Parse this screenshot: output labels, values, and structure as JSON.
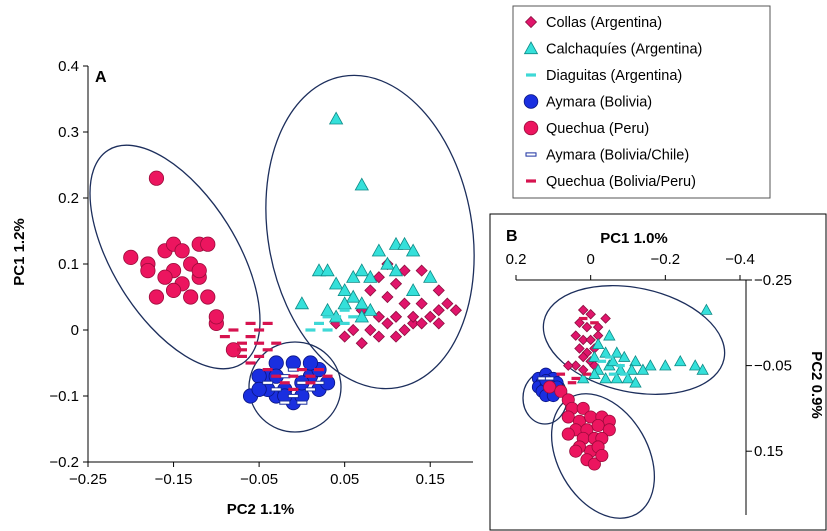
{
  "legend": {
    "items": [
      {
        "label": "Collas (Argentina)",
        "marker": "diamond",
        "color": "#e0156b",
        "stroke": "#8a0d3e"
      },
      {
        "label": "Calchaquíes (Argentina)",
        "marker": "triangle",
        "color": "#35e0da",
        "stroke": "#0e8a86"
      },
      {
        "label": "Diaguitas (Argentina)",
        "marker": "dash",
        "color": "#3ed8d6",
        "stroke": "#3ed8d6"
      },
      {
        "label": "Aymara (Bolivia)",
        "marker": "circle",
        "color": "#1a2fe0",
        "stroke": "#0a1580"
      },
      {
        "label": "Quechua (Peru)",
        "marker": "circle",
        "color": "#ec155f",
        "stroke": "#9a0b3b"
      },
      {
        "label": "Aymara (Bolivia/Chile)",
        "marker": "dash-outline",
        "color": "#ffffff",
        "stroke": "#1a2fa0"
      },
      {
        "label": "Quechua (Bolivia/Peru)",
        "marker": "dash",
        "color": "#d6134f",
        "stroke": "#d6134f"
      }
    ]
  },
  "chart_data": [
    {
      "type": "scatter",
      "panel_label": "A",
      "xlabel": "PC2 1.1%",
      "ylabel": "PC1 1.2%",
      "xlim": [
        -0.25,
        0.2
      ],
      "ylim": [
        -0.2,
        0.4
      ],
      "xticks": [
        -0.25,
        -0.15,
        -0.05,
        0.05,
        0.15
      ],
      "xtick_labels": [
        "−0.25",
        "−0.15",
        "−0.05",
        "0.05",
        "0.15"
      ],
      "yticks": [
        -0.2,
        -0.1,
        0,
        0.1,
        0.2,
        0.3,
        0.4
      ],
      "ytick_labels": [
        "−0.2",
        "−0.1",
        "0",
        "0.1",
        "0.2",
        "0.3",
        "0.4"
      ],
      "series": [
        {
          "name": "Quechua (Peru)",
          "points": [
            [
              -0.17,
              0.23
            ],
            [
              -0.2,
              0.11
            ],
            [
              -0.18,
              0.1
            ],
            [
              -0.16,
              0.12
            ],
            [
              -0.15,
              0.13
            ],
            [
              -0.14,
              0.12
            ],
            [
              -0.12,
              0.13
            ],
            [
              -0.11,
              0.13
            ],
            [
              -0.13,
              0.1
            ],
            [
              -0.15,
              0.09
            ],
            [
              -0.16,
              0.08
            ],
            [
              -0.18,
              0.09
            ],
            [
              -0.14,
              0.07
            ],
            [
              -0.12,
              0.08
            ],
            [
              -0.17,
              0.05
            ],
            [
              -0.15,
              0.06
            ],
            [
              -0.13,
              0.05
            ],
            [
              -0.11,
              0.05
            ],
            [
              -0.12,
              0.09
            ],
            [
              -0.1,
              0.01
            ],
            [
              -0.1,
              0.02
            ],
            [
              -0.08,
              -0.03
            ]
          ]
        },
        {
          "name": "Collas (Argentina)",
          "points": [
            [
              0.09,
              0.08
            ],
            [
              0.1,
              0.1
            ],
            [
              0.12,
              0.09
            ],
            [
              0.14,
              0.09
            ],
            [
              0.16,
              0.06
            ],
            [
              0.08,
              0.06
            ],
            [
              0.1,
              0.05
            ],
            [
              0.12,
              0.04
            ],
            [
              0.14,
              0.04
            ],
            [
              0.16,
              0.03
            ],
            [
              0.07,
              0.03
            ],
            [
              0.09,
              0.02
            ],
            [
              0.11,
              0.02
            ],
            [
              0.13,
              0.01
            ],
            [
              0.15,
              0.02
            ],
            [
              0.17,
              0.04
            ],
            [
              0.18,
              0.03
            ],
            [
              0.06,
              0.0
            ],
            [
              0.08,
              0.0
            ],
            [
              0.1,
              0.01
            ],
            [
              0.12,
              0.0
            ],
            [
              0.14,
              0.01
            ],
            [
              0.16,
              0.01
            ],
            [
              0.07,
              -0.02
            ],
            [
              0.09,
              -0.01
            ],
            [
              0.11,
              -0.01
            ],
            [
              0.05,
              -0.01
            ],
            [
              0.04,
              0.01
            ],
            [
              0.13,
              0.02
            ],
            [
              0.11,
              0.07
            ]
          ]
        },
        {
          "name": "Calchaquíes (Argentina)",
          "points": [
            [
              0.04,
              0.32
            ],
            [
              0.07,
              0.22
            ],
            [
              0.09,
              0.12
            ],
            [
              0.11,
              0.13
            ],
            [
              0.12,
              0.13
            ],
            [
              0.13,
              0.12
            ],
            [
              0.1,
              0.1
            ],
            [
              0.11,
              0.09
            ],
            [
              0.07,
              0.09
            ],
            [
              0.08,
              0.08
            ],
            [
              0.06,
              0.08
            ],
            [
              0.02,
              0.09
            ],
            [
              0.03,
              0.09
            ],
            [
              0.04,
              0.07
            ],
            [
              0.05,
              0.06
            ],
            [
              0.06,
              0.05
            ],
            [
              0.05,
              0.04
            ],
            [
              0.07,
              0.04
            ],
            [
              0.08,
              0.03
            ],
            [
              0.04,
              0.02
            ],
            [
              0.03,
              0.03
            ],
            [
              0.07,
              0.02
            ],
            [
              0.0,
              0.04
            ],
            [
              0.15,
              0.08
            ],
            [
              0.13,
              0.06
            ]
          ]
        },
        {
          "name": "Diaguitas (Argentina)",
          "points": [
            [
              0.02,
              0.01
            ],
            [
              0.03,
              0.0
            ],
            [
              0.04,
              0.02
            ],
            [
              0.05,
              0.01
            ],
            [
              0.06,
              0.02
            ],
            [
              0.01,
              0.0
            ],
            [
              0.03,
              0.02
            ],
            [
              0.05,
              0.03
            ]
          ]
        },
        {
          "name": "Aymara (Bolivia)",
          "points": [
            [
              -0.06,
              -0.1
            ],
            [
              -0.04,
              -0.07
            ],
            [
              -0.03,
              -0.1
            ],
            [
              -0.02,
              -0.09
            ],
            [
              -0.01,
              -0.11
            ],
            [
              0.0,
              -0.1
            ],
            [
              0.01,
              -0.07
            ],
            [
              0.02,
              -0.09
            ],
            [
              0.03,
              -0.08
            ],
            [
              0.02,
              -0.06
            ],
            [
              0.01,
              -0.05
            ],
            [
              -0.01,
              -0.05
            ],
            [
              -0.03,
              -0.05
            ],
            [
              -0.05,
              -0.07
            ],
            [
              -0.04,
              -0.09
            ],
            [
              -0.02,
              -0.1
            ],
            [
              0.0,
              -0.08
            ],
            [
              -0.03,
              -0.07
            ],
            [
              -0.05,
              -0.09
            ]
          ]
        },
        {
          "name": "Aymara (Bolivia/Chile)",
          "points": [
            [
              -0.04,
              -0.08
            ],
            [
              -0.02,
              -0.07
            ],
            [
              0.0,
              -0.08
            ],
            [
              0.01,
              -0.09
            ],
            [
              -0.01,
              -0.1
            ],
            [
              -0.03,
              -0.09
            ],
            [
              0.02,
              -0.08
            ],
            [
              -0.01,
              -0.06
            ],
            [
              0.0,
              -0.11
            ],
            [
              -0.02,
              -0.11
            ]
          ]
        },
        {
          "name": "Quechua (Bolivia/Peru)",
          "points": [
            [
              -0.09,
              -0.01
            ],
            [
              -0.07,
              -0.02
            ],
            [
              -0.06,
              -0.01
            ],
            [
              -0.05,
              0.0
            ],
            [
              -0.04,
              0.01
            ],
            [
              -0.05,
              -0.02
            ],
            [
              -0.07,
              -0.04
            ],
            [
              -0.06,
              -0.05
            ],
            [
              -0.03,
              -0.02
            ],
            [
              -0.04,
              -0.03
            ],
            [
              -0.08,
              0.0
            ],
            [
              -0.06,
              0.01
            ],
            [
              -0.04,
              -0.06
            ],
            [
              -0.03,
              -0.07
            ],
            [
              -0.01,
              -0.07
            ],
            [
              0.0,
              -0.06
            ],
            [
              0.01,
              -0.07
            ],
            [
              0.02,
              -0.06
            ],
            [
              -0.02,
              -0.08
            ],
            [
              -0.01,
              -0.09
            ],
            [
              0.01,
              -0.08
            ],
            [
              0.03,
              -0.07
            ],
            [
              -0.05,
              -0.04
            ],
            [
              -0.07,
              -0.03
            ]
          ]
        }
      ]
    },
    {
      "type": "scatter",
      "panel_label": "B",
      "xlabel": "PC1 1.0%",
      "ylabel": "PC2 0.9%",
      "xlim": [
        0.2,
        -0.4
      ],
      "ylim": [
        -0.25,
        0.25
      ],
      "xticks": [
        0.2,
        0,
        -0.2,
        -0.4
      ],
      "xtick_labels": [
        "0.2",
        "0",
        "−0.2",
        "−0.4"
      ],
      "yticks": [
        -0.25,
        -0.05,
        0.15
      ],
      "ytick_labels": [
        "−0.25",
        "−0.05",
        "0.15"
      ],
      "series": [
        {
          "name": "Collas (Argentina)",
          "points": [
            [
              0.02,
              -0.18
            ],
            [
              0.0,
              -0.17
            ],
            [
              -0.04,
              -0.16
            ],
            [
              0.03,
              -0.15
            ],
            [
              0.01,
              -0.14
            ],
            [
              -0.02,
              -0.14
            ],
            [
              0.04,
              -0.12
            ],
            [
              0.02,
              -0.11
            ],
            [
              0.0,
              -0.11
            ],
            [
              -0.02,
              -0.12
            ],
            [
              0.03,
              -0.09
            ],
            [
              0.01,
              -0.08
            ],
            [
              -0.01,
              -0.09
            ],
            [
              0.02,
              -0.07
            ],
            [
              0.0,
              -0.06
            ],
            [
              0.04,
              -0.05
            ],
            [
              0.02,
              -0.04
            ],
            [
              -0.01,
              -0.05
            ],
            [
              0.06,
              -0.05
            ]
          ]
        },
        {
          "name": "Calchaquíes (Argentina)",
          "points": [
            [
              -0.31,
              -0.18
            ],
            [
              -0.05,
              -0.12
            ],
            [
              -0.02,
              -0.1
            ],
            [
              -0.07,
              -0.08
            ],
            [
              -0.04,
              -0.08
            ],
            [
              -0.01,
              -0.07
            ],
            [
              -0.09,
              -0.07
            ],
            [
              -0.12,
              -0.06
            ],
            [
              -0.16,
              -0.05
            ],
            [
              -0.2,
              -0.05
            ],
            [
              -0.24,
              -0.06
            ],
            [
              -0.28,
              -0.05
            ],
            [
              -0.3,
              -0.04
            ],
            [
              -0.05,
              -0.05
            ],
            [
              -0.02,
              -0.04
            ],
            [
              -0.08,
              -0.04
            ],
            [
              -0.11,
              -0.04
            ],
            [
              -0.14,
              -0.04
            ],
            [
              -0.04,
              -0.02
            ],
            [
              -0.07,
              -0.02
            ],
            [
              -0.1,
              -0.02
            ],
            [
              -0.12,
              -0.01
            ],
            [
              -0.01,
              -0.03
            ],
            [
              0.02,
              -0.02
            ],
            [
              -0.06,
              -0.06
            ]
          ]
        },
        {
          "name": "Diaguitas (Argentina)",
          "points": [
            [
              -0.05,
              -0.07
            ],
            [
              -0.08,
              -0.05
            ],
            [
              -0.06,
              -0.03
            ],
            [
              -0.03,
              -0.06
            ],
            [
              -0.09,
              -0.03
            ]
          ]
        },
        {
          "name": "Aymara (Bolivia)",
          "points": [
            [
              0.14,
              -0.02
            ],
            [
              0.12,
              -0.03
            ],
            [
              0.1,
              -0.02
            ],
            [
              0.13,
              -0.01
            ],
            [
              0.11,
              -0.01
            ],
            [
              0.09,
              -0.01
            ],
            [
              0.14,
              0.0
            ],
            [
              0.12,
              0.0
            ],
            [
              0.1,
              0.0
            ],
            [
              0.13,
              0.01
            ],
            [
              0.11,
              0.01
            ],
            [
              0.09,
              0.0
            ],
            [
              0.12,
              0.02
            ],
            [
              0.1,
              0.02
            ],
            [
              0.12,
              -0.015
            ]
          ]
        },
        {
          "name": "Quechua (Peru)",
          "points": [
            [
              0.11,
              0.0
            ],
            [
              0.08,
              0.01
            ],
            [
              0.06,
              0.03
            ],
            [
              0.05,
              0.05
            ],
            [
              0.02,
              0.05
            ],
            [
              0.06,
              0.07
            ],
            [
              0.03,
              0.08
            ],
            [
              0.0,
              0.07
            ],
            [
              -0.03,
              0.07
            ],
            [
              -0.05,
              0.08
            ],
            [
              0.04,
              0.1
            ],
            [
              0.01,
              0.1
            ],
            [
              -0.02,
              0.09
            ],
            [
              -0.05,
              0.1
            ],
            [
              0.02,
              0.12
            ],
            [
              -0.01,
              0.12
            ],
            [
              -0.03,
              0.12
            ],
            [
              0.03,
              0.14
            ],
            [
              0.0,
              0.15
            ],
            [
              -0.02,
              0.14
            ],
            [
              0.01,
              0.17
            ],
            [
              -0.01,
              0.18
            ],
            [
              -0.03,
              0.16
            ],
            [
              0.04,
              0.15
            ],
            [
              0.06,
              0.11
            ]
          ]
        },
        {
          "name": "Aymara (Bolivia/Chile)",
          "points": [
            [
              0.13,
              -0.02
            ],
            [
              0.11,
              -0.02
            ]
          ]
        },
        {
          "name": "Quechua (Bolivia/Peru)",
          "points": [
            [
              0.02,
              -0.16
            ],
            [
              -0.01,
              -0.15
            ],
            [
              0.05,
              -0.01
            ],
            [
              0.01,
              -0.03
            ],
            [
              0.08,
              -0.03
            ],
            [
              0.04,
              -0.02
            ]
          ]
        }
      ]
    }
  ]
}
